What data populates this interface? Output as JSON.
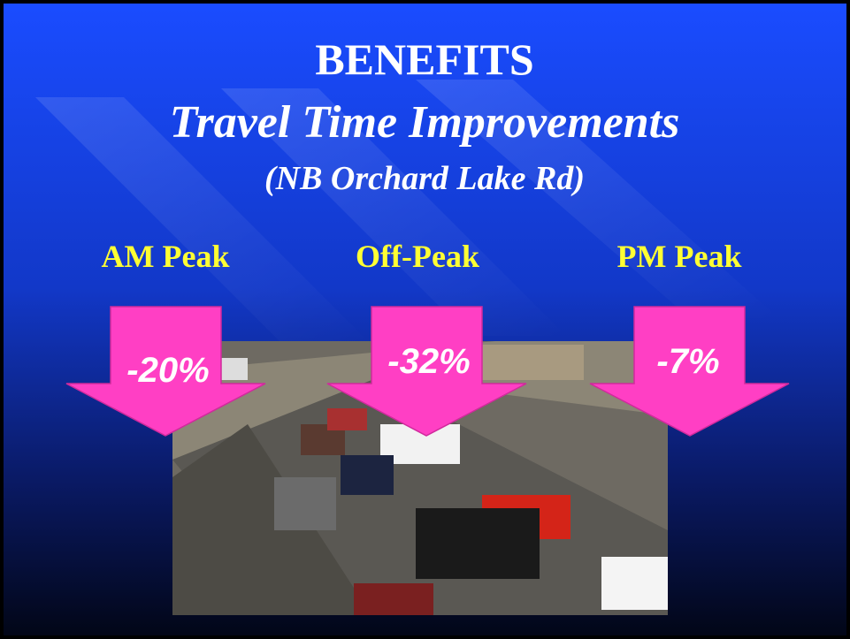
{
  "slide": {
    "title": "BENEFITS",
    "subtitle": "Travel Time Improvements",
    "location": "(NB Orchard Lake Rd)",
    "periods": [
      {
        "label": "AM Peak",
        "change": "-20%"
      },
      {
        "label": "Off-Peak",
        "change": "-32%"
      },
      {
        "label": "PM Peak",
        "change": "-7%"
      }
    ]
  }
}
